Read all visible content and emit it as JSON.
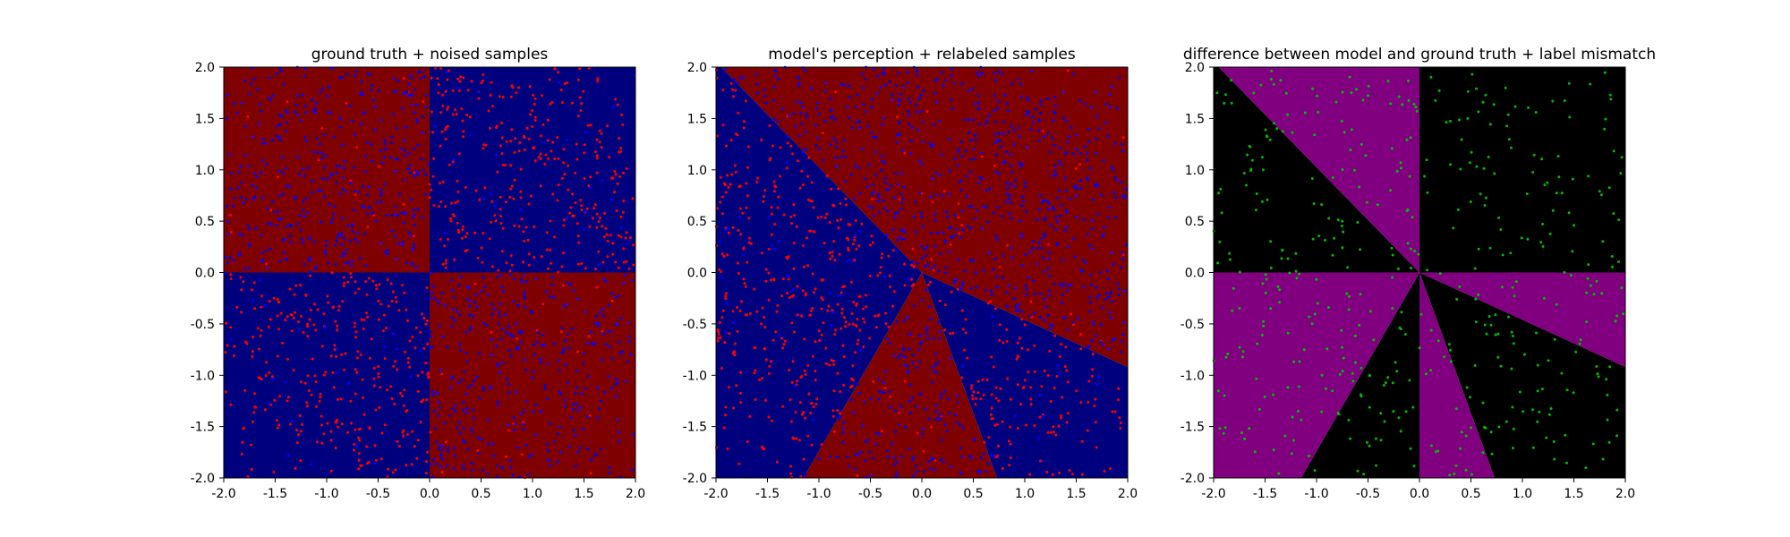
{
  "colors": {
    "class_a_region": "#7f0000",
    "class_b_region": "#00007f",
    "red_samples": "#ff0000",
    "blue_samples": "#0000ff",
    "agree_region": "#000000",
    "disagree_region": "#800080",
    "mismatch_samples": "#00bb00"
  },
  "chart_data": [
    {
      "type": "scatter",
      "title": "ground truth + noised samples",
      "xlim": [
        -2.0,
        2.0
      ],
      "ylim": [
        -2.0,
        2.0
      ],
      "x_ticks": [
        "-2.0",
        "-1.5",
        "-1.0",
        "-0.5",
        "0.0",
        "0.5",
        "1.0",
        "1.5",
        "2.0"
      ],
      "y_ticks": [
        "2.0",
        "1.5",
        "1.0",
        "0.5",
        "0.0",
        "-0.5",
        "-1.0",
        "-1.5",
        "-2.0"
      ],
      "background_regions": [
        {
          "label": "class_a",
          "quadrants": [
            "x<0,y>0",
            "x>0,y<0"
          ],
          "color": "#7f0000"
        },
        {
          "label": "class_b",
          "quadrants": [
            "x>0,y>0",
            "x<0,y<0"
          ],
          "color": "#00007f"
        }
      ],
      "series": [
        {
          "color": "#ff0000",
          "dense_regions": [
            "x>0,y>0",
            "x<0,y<0"
          ],
          "count": 700
        },
        {
          "color": "#0000ff",
          "dense_regions": [
            "x<0,y>0",
            "x>0,y<0"
          ],
          "count": 800
        }
      ]
    },
    {
      "type": "scatter",
      "title": "model's perception + relabeled samples",
      "xlim": [
        -2.0,
        2.0
      ],
      "ylim": [
        -2.0,
        2.0
      ],
      "x_ticks": [
        "-2.0",
        "-1.5",
        "-1.0",
        "-0.5",
        "0.0",
        "0.5",
        "1.0",
        "1.5",
        "2.0"
      ],
      "y_ticks": [
        "2.0",
        "1.5",
        "1.0",
        "0.5",
        "0.0",
        "-0.5",
        "-1.0",
        "-1.5",
        "-2.0"
      ],
      "background_regions": [
        {
          "label": "class_a",
          "polygon": [
            [
              -1.95,
              2.0
            ],
            [
              2.0,
              2.0
            ],
            [
              2.0,
              -0.92
            ],
            [
              0.0,
              0.0
            ]
          ],
          "color": "#7f0000"
        },
        {
          "label": "class_b",
          "polygon": [
            [
              -2.0,
              2.0
            ],
            [
              -1.95,
              2.0
            ],
            [
              0.0,
              0.0
            ],
            [
              -1.15,
              -2.0
            ],
            [
              -2.0,
              -2.0
            ]
          ],
          "color": "#00007f"
        },
        {
          "label": "class_a",
          "polygon": [
            [
              0.0,
              0.0
            ],
            [
              -1.15,
              -2.0
            ],
            [
              0.73,
              -2.0
            ]
          ],
          "color": "#7f0000"
        },
        {
          "label": "class_b",
          "polygon": [
            [
              0.0,
              0.0
            ],
            [
              0.73,
              -2.0
            ],
            [
              2.0,
              -2.0
            ],
            [
              2.0,
              -0.92
            ]
          ],
          "color": "#00007f"
        }
      ],
      "series": [
        {
          "color": "#ff0000",
          "dense_regions": [
            "class_b_region"
          ],
          "count": 600
        },
        {
          "color": "#0000ff",
          "dense_regions": [
            "class_a_region"
          ],
          "count": 900
        }
      ]
    },
    {
      "type": "scatter",
      "title": "difference between model and ground truth + label mismatch",
      "xlim": [
        -2.0,
        2.0
      ],
      "ylim": [
        -2.0,
        2.0
      ],
      "x_ticks": [
        "-2.0",
        "-1.5",
        "-1.0",
        "-0.5",
        "0.0",
        "0.5",
        "1.0",
        "1.5",
        "2.0"
      ],
      "y_ticks": [
        "2.0",
        "1.5",
        "1.0",
        "0.5",
        "0.0",
        "-0.5",
        "-1.0",
        "-1.5",
        "-2.0"
      ],
      "background_regions": [
        {
          "label": "agree",
          "polygon": [
            [
              -2.0,
              2.0
            ],
            [
              -1.95,
              2.0
            ],
            [
              0.0,
              0.0
            ],
            [
              -2.0,
              0.0
            ]
          ],
          "color": "#000000"
        },
        {
          "label": "disagree",
          "polygon": [
            [
              -1.95,
              2.0
            ],
            [
              0.0,
              2.0
            ],
            [
              0.0,
              0.0
            ]
          ],
          "color": "#800080"
        },
        {
          "label": "agree",
          "polygon": [
            [
              0.0,
              2.0
            ],
            [
              2.0,
              2.0
            ],
            [
              2.0,
              0.0
            ],
            [
              0.0,
              0.0
            ]
          ],
          "color": "#000000"
        },
        {
          "label": "disagree",
          "polygon": [
            [
              0.0,
              0.0
            ],
            [
              2.0,
              0.0
            ],
            [
              2.0,
              -0.92
            ]
          ],
          "color": "#800080"
        },
        {
          "label": "agree",
          "polygon": [
            [
              0.0,
              0.0
            ],
            [
              2.0,
              -0.92
            ],
            [
              2.0,
              -2.0
            ],
            [
              0.73,
              -2.0
            ]
          ],
          "color": "#000000"
        },
        {
          "label": "disagree",
          "polygon": [
            [
              0.0,
              0.0
            ],
            [
              0.73,
              -2.0
            ],
            [
              0.0,
              -2.0
            ]
          ],
          "color": "#800080"
        },
        {
          "label": "agree",
          "polygon": [
            [
              0.0,
              0.0
            ],
            [
              0.0,
              -2.0
            ],
            [
              -1.15,
              -2.0
            ]
          ],
          "color": "#000000"
        },
        {
          "label": "disagree",
          "polygon": [
            [
              0.0,
              0.0
            ],
            [
              -1.15,
              -2.0
            ],
            [
              -2.0,
              -2.0
            ],
            [
              -2.0,
              0.0
            ]
          ],
          "color": "#800080"
        }
      ],
      "series": [
        {
          "color": "#00bb00",
          "dense_regions": [
            "x>0,y>0",
            "x<0,y>0",
            "x>0,y<0",
            "x<0,y<0"
          ],
          "count": 450
        }
      ]
    }
  ]
}
